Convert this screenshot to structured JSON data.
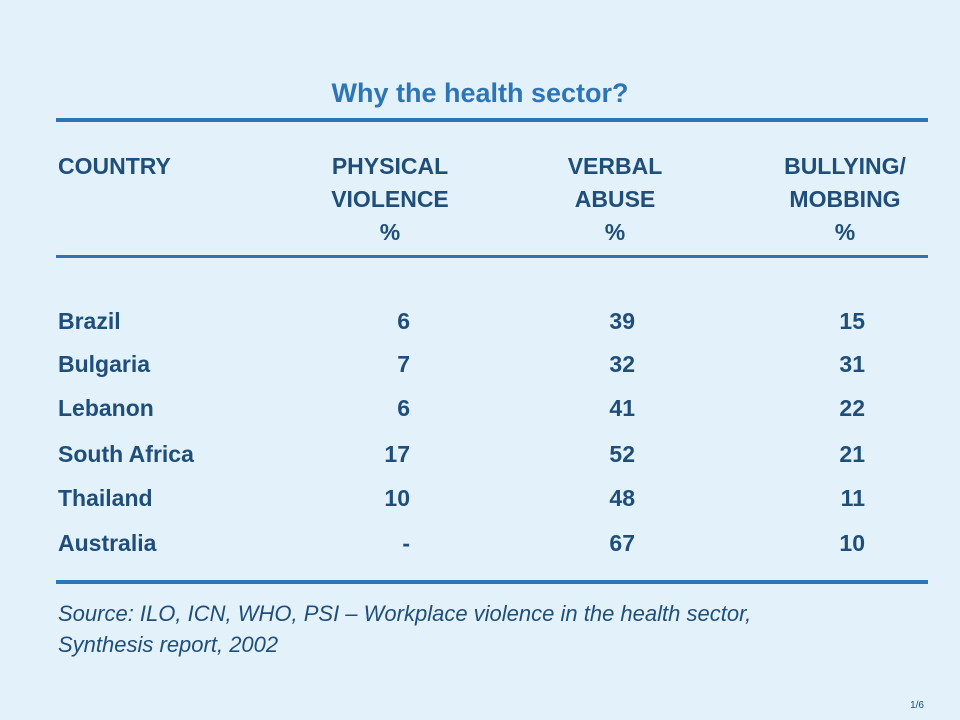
{
  "title": "Why the health sector?",
  "headers": {
    "country": "COUNTRY",
    "physical": [
      "PHYSICAL",
      "VIOLENCE",
      "%"
    ],
    "verbal": [
      "VERBAL",
      "ABUSE",
      "%"
    ],
    "bullying": [
      "BULLYING/",
      "MOBBING",
      "%"
    ]
  },
  "rows": [
    {
      "country": "Brazil",
      "physical": "6",
      "verbal": "39",
      "bullying": "15"
    },
    {
      "country": "Bulgaria",
      "physical": "7",
      "verbal": "32",
      "bullying": "31"
    },
    {
      "country": "Lebanon",
      "physical": "6",
      "verbal": "41",
      "bullying": "22"
    },
    {
      "country": "South Africa",
      "physical": "17",
      "verbal": "52",
      "bullying": "21"
    },
    {
      "country": "Thailand",
      "physical": "10",
      "verbal": "48",
      "bullying": "11"
    },
    {
      "country": "Australia",
      "physical": "-",
      "verbal": "67",
      "bullying": "10"
    }
  ],
  "source_line1": "Source: ILO, ICN, WHO, PSI – Workplace violence in the health sector,",
  "source_line2": "Synthesis report, 2002",
  "page_number": "1/6",
  "colors": {
    "background": "#e2f1fa",
    "title": "#2e75b6",
    "text": "#1f4e7a",
    "rule": "#2e75b6"
  }
}
